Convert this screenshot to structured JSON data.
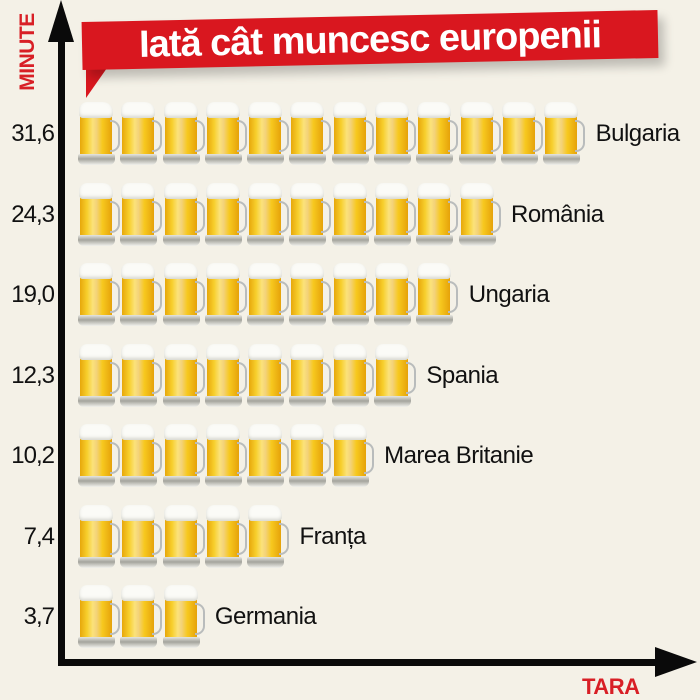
{
  "title": "Iată cât muncesc europenii",
  "axes": {
    "y_title": "MINUTE",
    "x_title": "TARA"
  },
  "colors": {
    "banner": "#d9171f",
    "axis_title": "#d81f26",
    "axis_line": "#0a0a0a",
    "background": "#f4f1e7",
    "beer": "#f7c81e"
  },
  "rows": [
    {
      "value": "31,6",
      "country": "Bulgaria",
      "mugs": 12
    },
    {
      "value": "24,3",
      "country": "România",
      "mugs": 10
    },
    {
      "value": "19,0",
      "country": "Ungaria",
      "mugs": 9
    },
    {
      "value": "12,3",
      "country": "Spania",
      "mugs": 8
    },
    {
      "value": "10,2",
      "country": "Marea Britanie",
      "mugs": 7
    },
    {
      "value": "7,4",
      "country": "Franța",
      "mugs": 5
    },
    {
      "value": "3,7",
      "country": "Germania",
      "mugs": 3
    }
  ],
  "chart_data": {
    "type": "bar",
    "orientation": "horizontal",
    "pictogram": "beer-mug",
    "title": "Iată cât muncesc europenii",
    "xlabel": "TARA",
    "ylabel": "MINUTE",
    "categories": [
      "Bulgaria",
      "România",
      "Ungaria",
      "Spania",
      "Marea Britanie",
      "Franța",
      "Germania"
    ],
    "values": [
      31.6,
      24.3,
      19.0,
      12.3,
      10.2,
      7.4,
      3.7
    ],
    "value_labels": [
      "31,6",
      "24,3",
      "19,0",
      "12,3",
      "10,2",
      "7,4",
      "3,7"
    ],
    "icon_counts": [
      12,
      10,
      9,
      8,
      7,
      5,
      3
    ],
    "grid": false,
    "legend": null
  }
}
